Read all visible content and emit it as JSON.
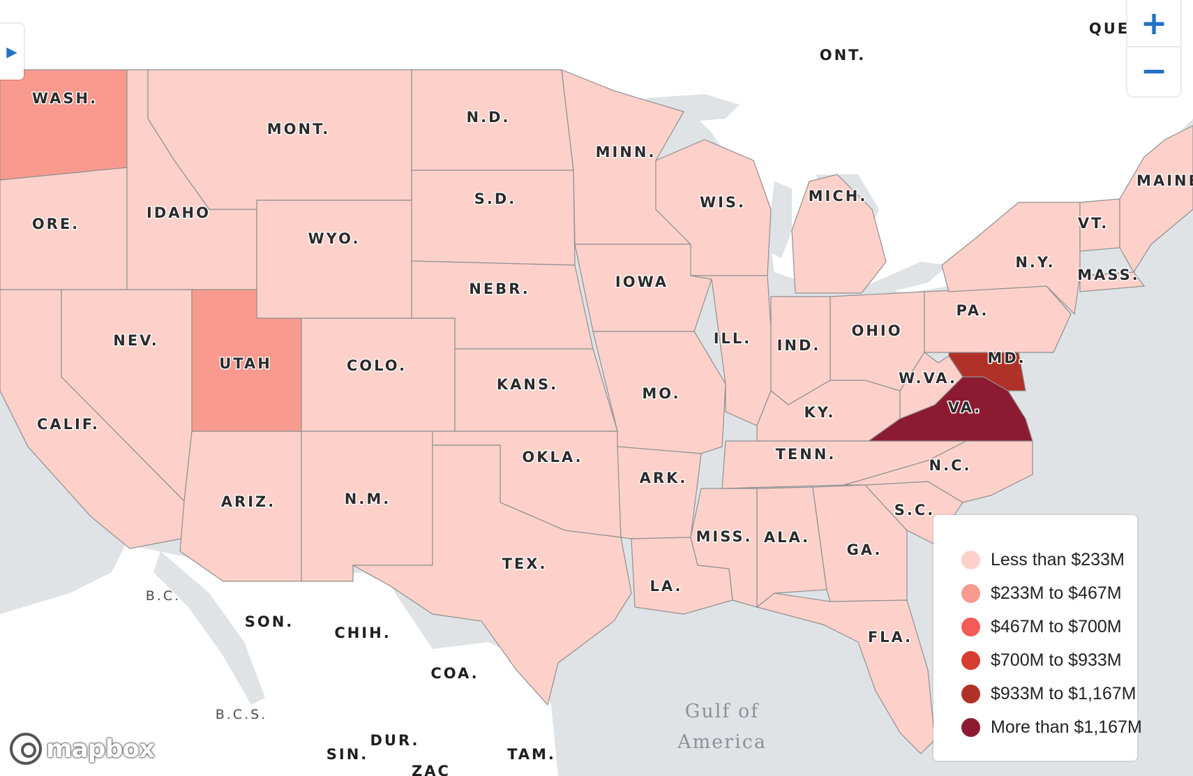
{
  "map": {
    "states": [
      {
        "abbr": "WASH.",
        "bin": 1
      },
      {
        "abbr": "ORE.",
        "bin": 0
      },
      {
        "abbr": "CALIF.",
        "bin": 0
      },
      {
        "abbr": "IDAHO",
        "bin": 0
      },
      {
        "abbr": "NEV.",
        "bin": 0
      },
      {
        "abbr": "MONT.",
        "bin": 0
      },
      {
        "abbr": "WYO.",
        "bin": 0
      },
      {
        "abbr": "UTAH",
        "bin": 1
      },
      {
        "abbr": "COLO.",
        "bin": 0
      },
      {
        "abbr": "ARIZ.",
        "bin": 0
      },
      {
        "abbr": "N.M.",
        "bin": 0
      },
      {
        "abbr": "N.D.",
        "bin": 0
      },
      {
        "abbr": "S.D.",
        "bin": 0
      },
      {
        "abbr": "NEBR.",
        "bin": 0
      },
      {
        "abbr": "KANS.",
        "bin": 0
      },
      {
        "abbr": "OKLA.",
        "bin": 0
      },
      {
        "abbr": "TEX.",
        "bin": 0
      },
      {
        "abbr": "MINN.",
        "bin": 0
      },
      {
        "abbr": "IOWA",
        "bin": 0
      },
      {
        "abbr": "MO.",
        "bin": 0
      },
      {
        "abbr": "ARK.",
        "bin": 0
      },
      {
        "abbr": "LA.",
        "bin": 0
      },
      {
        "abbr": "WIS.",
        "bin": 0
      },
      {
        "abbr": "ILL.",
        "bin": 0
      },
      {
        "abbr": "MICH.",
        "bin": 0
      },
      {
        "abbr": "IND.",
        "bin": 0
      },
      {
        "abbr": "OHIO",
        "bin": 0
      },
      {
        "abbr": "KY.",
        "bin": 0
      },
      {
        "abbr": "TENN.",
        "bin": 0
      },
      {
        "abbr": "MISS.",
        "bin": 0
      },
      {
        "abbr": "ALA.",
        "bin": 0
      },
      {
        "abbr": "GA.",
        "bin": 0
      },
      {
        "abbr": "FLA.",
        "bin": 0
      },
      {
        "abbr": "S.C.",
        "bin": 0
      },
      {
        "abbr": "N.C.",
        "bin": 0
      },
      {
        "abbr": "VA.",
        "bin": 5
      },
      {
        "abbr": "W.VA.",
        "bin": 0
      },
      {
        "abbr": "MD.",
        "bin": 4
      },
      {
        "abbr": "PA.",
        "bin": 0
      },
      {
        "abbr": "N.Y.",
        "bin": 0
      },
      {
        "abbr": "VT.",
        "bin": 0
      },
      {
        "abbr": "MASS.",
        "bin": 0
      },
      {
        "abbr": "MAINE",
        "bin": 0
      }
    ],
    "foreign_labels": [
      "ONT.",
      "QUE",
      "SON.",
      "CHIH.",
      "COA.",
      "DUR.",
      "TAM.",
      "SIN.",
      "ZAC"
    ],
    "small_labels": [
      "B.C.",
      "B.C.S."
    ],
    "water_labels": [
      "Gulf of",
      "America"
    ]
  },
  "legend": {
    "items": [
      {
        "label": "Less than $233M",
        "color": "#fdd1ca"
      },
      {
        "label": "$233M to $467M",
        "color": "#f99a8f"
      },
      {
        "label": "$467M to $700M",
        "color": "#f25b57"
      },
      {
        "label": "$700M to $933M",
        "color": "#d63c31"
      },
      {
        "label": "$933M to $1,167M",
        "color": "#b03127"
      },
      {
        "label": "More than $1,167M",
        "color": "#8c1b31"
      }
    ]
  },
  "controls": {
    "zoom_in": "+",
    "zoom_out": "−",
    "panel_toggle": "▶"
  },
  "attribution": {
    "brand": "mapbox"
  },
  "colors": {
    "water": "#dfe3e6",
    "foreign_land": "#ffffff",
    "border": "#8f8f8f",
    "accent": "#2471c8"
  }
}
